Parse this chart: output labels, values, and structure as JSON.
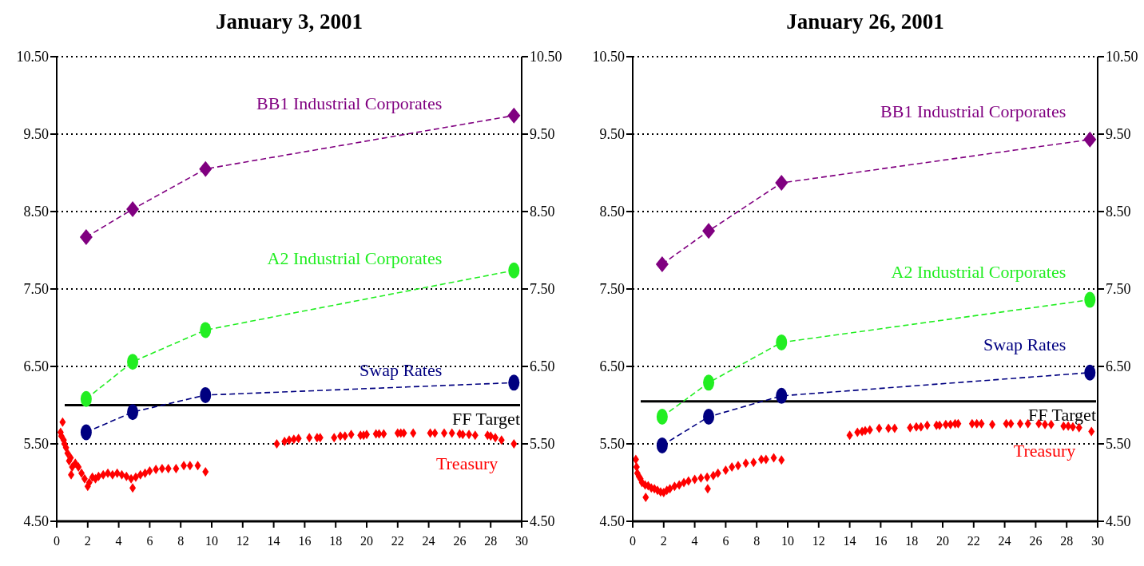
{
  "chart_data": [
    {
      "type": "line",
      "title": "January 3, 2001",
      "xlim": [
        0,
        30
      ],
      "xticks": [
        0,
        2,
        4,
        6,
        8,
        10,
        12,
        14,
        16,
        18,
        20,
        22,
        24,
        26,
        28,
        30
      ],
      "ylim": [
        4.5,
        10.5
      ],
      "yticks": [
        {
          "value": 4.5,
          "label": "4.50"
        },
        {
          "value": 5.5,
          "label": "5.50"
        },
        {
          "value": 6.5,
          "label": "6.50"
        },
        {
          "value": 7.5,
          "label": "7.50"
        },
        {
          "value": 8.5,
          "label": "8.50"
        },
        {
          "value": 9.5,
          "label": "9.50"
        },
        {
          "value": 10.5,
          "label": "10.50"
        }
      ],
      "y2lim": [
        4.5,
        10.5
      ],
      "y2ticks": [
        {
          "value": 4.5,
          "label": "4.50"
        },
        {
          "value": 5.5,
          "label": "5.50"
        },
        {
          "value": 6.5,
          "label": "6.50"
        },
        {
          "value": 7.5,
          "label": "7.50"
        },
        {
          "value": 8.5,
          "label": "8.50"
        },
        {
          "value": 9.5,
          "label": "9.50"
        },
        {
          "value": 10.5,
          "label": "10.50"
        }
      ],
      "grid": "y",
      "ref_lines": [
        {
          "axis": "y",
          "value": 6.0,
          "label": "FF Target",
          "color": "#000000",
          "line_style": "solid"
        }
      ],
      "series": [
        {
          "name": "BB1 Industrial Corporates",
          "color": "#800080",
          "marker": "diamond",
          "line_style": "dashed",
          "x": [
            1.9,
            4.9,
            9.6,
            29.5
          ],
          "values": [
            8.17,
            8.53,
            9.05,
            9.74
          ]
        },
        {
          "name": "A2 Industrial Corporates",
          "color": "#22ee22",
          "marker": "circle",
          "line_style": "dashed",
          "x": [
            1.9,
            4.9,
            9.6,
            29.5
          ],
          "values": [
            6.08,
            6.56,
            6.97,
            7.74
          ]
        },
        {
          "name": "Swap Rates",
          "color": "#000080",
          "marker": "circle",
          "line_style": "dashed",
          "x": [
            1.9,
            4.9,
            9.6,
            29.5
          ],
          "values": [
            5.65,
            5.91,
            6.13,
            6.29
          ]
        },
        {
          "name": "Treasury",
          "type": "scatter",
          "color": "#ff0000",
          "marker": "diamond",
          "x": [
            0.25,
            0.3,
            0.38,
            0.45,
            0.5,
            0.6,
            0.7,
            0.8,
            0.9,
            0.93,
            1.0,
            1.2,
            1.4,
            1.6,
            1.8,
            2.0,
            2.1,
            2.3,
            2.5,
            2.7,
            3.0,
            3.3,
            3.6,
            3.9,
            4.2,
            4.5,
            4.8,
            4.9,
            5.1,
            5.4,
            5.7,
            6.0,
            6.4,
            6.8,
            7.2,
            7.7,
            8.2,
            8.6,
            9.1,
            9.6,
            14.2,
            14.7,
            15.0,
            15.3,
            15.6,
            16.3,
            16.8,
            17.0,
            17.9,
            18.3,
            18.6,
            19.0,
            19.6,
            19.8,
            20.0,
            20.6,
            20.8,
            21.1,
            22.0,
            22.2,
            22.4,
            23.0,
            24.1,
            24.4,
            25.0,
            25.5,
            26.0,
            26.2,
            26.6,
            27.0,
            27.8,
            28.0,
            28.3,
            28.7,
            29.5
          ],
          "values": [
            5.65,
            5.6,
            5.78,
            5.55,
            5.5,
            5.45,
            5.38,
            5.28,
            5.32,
            5.1,
            5.2,
            5.25,
            5.2,
            5.12,
            5.05,
            4.95,
            5.0,
            5.07,
            5.05,
            5.08,
            5.1,
            5.12,
            5.1,
            5.12,
            5.1,
            5.08,
            5.05,
            4.93,
            5.07,
            5.1,
            5.12,
            5.15,
            5.17,
            5.18,
            5.18,
            5.18,
            5.22,
            5.22,
            5.22,
            5.14,
            5.5,
            5.53,
            5.55,
            5.56,
            5.57,
            5.58,
            5.58,
            5.58,
            5.58,
            5.6,
            5.6,
            5.62,
            5.61,
            5.61,
            5.62,
            5.63,
            5.63,
            5.63,
            5.64,
            5.64,
            5.64,
            5.64,
            5.64,
            5.64,
            5.64,
            5.64,
            5.63,
            5.62,
            5.62,
            5.61,
            5.61,
            5.6,
            5.58,
            5.55,
            5.5
          ]
        }
      ]
    },
    {
      "type": "line",
      "title": "January 26, 2001",
      "xlim": [
        0,
        30
      ],
      "xticks": [
        0,
        2,
        4,
        6,
        8,
        10,
        12,
        14,
        16,
        18,
        20,
        22,
        24,
        26,
        28,
        30
      ],
      "ylim": [
        4.5,
        10.5
      ],
      "yticks": [
        {
          "value": 4.5,
          "label": "4.50"
        },
        {
          "value": 5.5,
          "label": "5.50"
        },
        {
          "value": 6.5,
          "label": "6.50"
        },
        {
          "value": 7.5,
          "label": "7.50"
        },
        {
          "value": 8.5,
          "label": "8.50"
        },
        {
          "value": 9.5,
          "label": "9.50"
        },
        {
          "value": 10.5,
          "label": "10.50"
        }
      ],
      "y2lim": [
        4.5,
        10.5
      ],
      "y2ticks": [
        {
          "value": 4.5,
          "label": "4.50"
        },
        {
          "value": 5.5,
          "label": "5.50"
        },
        {
          "value": 6.5,
          "label": "6.50"
        },
        {
          "value": 7.5,
          "label": "7.50"
        },
        {
          "value": 8.5,
          "label": "8.50"
        },
        {
          "value": 9.5,
          "label": "9.50"
        },
        {
          "value": 10.5,
          "label": "10.50"
        }
      ],
      "grid": "y",
      "ref_lines": [
        {
          "axis": "y",
          "value": 6.05,
          "label": "FF Target",
          "color": "#000000",
          "line_style": "solid"
        }
      ],
      "series": [
        {
          "name": "BB1 Industrial Corporates",
          "color": "#800080",
          "marker": "diamond",
          "line_style": "dashed",
          "x": [
            1.9,
            4.9,
            9.6,
            29.5
          ],
          "values": [
            7.82,
            8.25,
            8.87,
            9.43
          ]
        },
        {
          "name": "A2 Industrial Corporates",
          "color": "#22ee22",
          "marker": "circle",
          "line_style": "dashed",
          "x": [
            1.9,
            4.9,
            9.6,
            29.5
          ],
          "values": [
            5.85,
            6.29,
            6.81,
            7.36
          ]
        },
        {
          "name": "Swap Rates",
          "color": "#000080",
          "marker": "circle",
          "line_style": "dashed",
          "x": [
            1.9,
            4.9,
            9.6,
            29.5
          ],
          "values": [
            5.48,
            5.85,
            6.12,
            6.42
          ]
        },
        {
          "name": "Treasury",
          "type": "scatter",
          "color": "#ff0000",
          "marker": "diamond",
          "x": [
            0.2,
            0.25,
            0.3,
            0.4,
            0.5,
            0.6,
            0.8,
            0.84,
            1.0,
            1.2,
            1.4,
            1.6,
            1.8,
            2.0,
            2.2,
            2.4,
            2.7,
            3.0,
            3.3,
            3.6,
            4.0,
            4.4,
            4.8,
            4.84,
            5.2,
            5.5,
            6.0,
            6.4,
            6.8,
            7.3,
            7.8,
            8.3,
            8.6,
            9.1,
            9.6,
            14.0,
            14.5,
            14.8,
            15.0,
            15.3,
            15.9,
            16.5,
            16.9,
            17.9,
            18.3,
            18.6,
            19.0,
            19.6,
            19.8,
            20.2,
            20.5,
            20.8,
            21.0,
            21.9,
            22.2,
            22.5,
            23.2,
            24.1,
            24.4,
            25.0,
            25.5,
            26.2,
            26.6,
            27.0,
            27.8,
            28.1,
            28.4,
            28.8,
            29.6
          ],
          "values": [
            5.3,
            5.2,
            5.12,
            5.08,
            5.05,
            5.0,
            4.97,
            4.81,
            4.96,
            4.93,
            4.92,
            4.9,
            4.88,
            4.87,
            4.9,
            4.92,
            4.95,
            4.97,
            5.0,
            5.02,
            5.04,
            5.06,
            5.07,
            4.92,
            5.09,
            5.12,
            5.16,
            5.2,
            5.22,
            5.25,
            5.26,
            5.3,
            5.3,
            5.32,
            5.29,
            5.61,
            5.65,
            5.66,
            5.67,
            5.68,
            5.7,
            5.7,
            5.7,
            5.71,
            5.72,
            5.72,
            5.74,
            5.74,
            5.74,
            5.75,
            5.75,
            5.76,
            5.76,
            5.76,
            5.76,
            5.76,
            5.75,
            5.76,
            5.76,
            5.76,
            5.76,
            5.76,
            5.75,
            5.75,
            5.73,
            5.73,
            5.72,
            5.71,
            5.66
          ]
        }
      ]
    }
  ]
}
